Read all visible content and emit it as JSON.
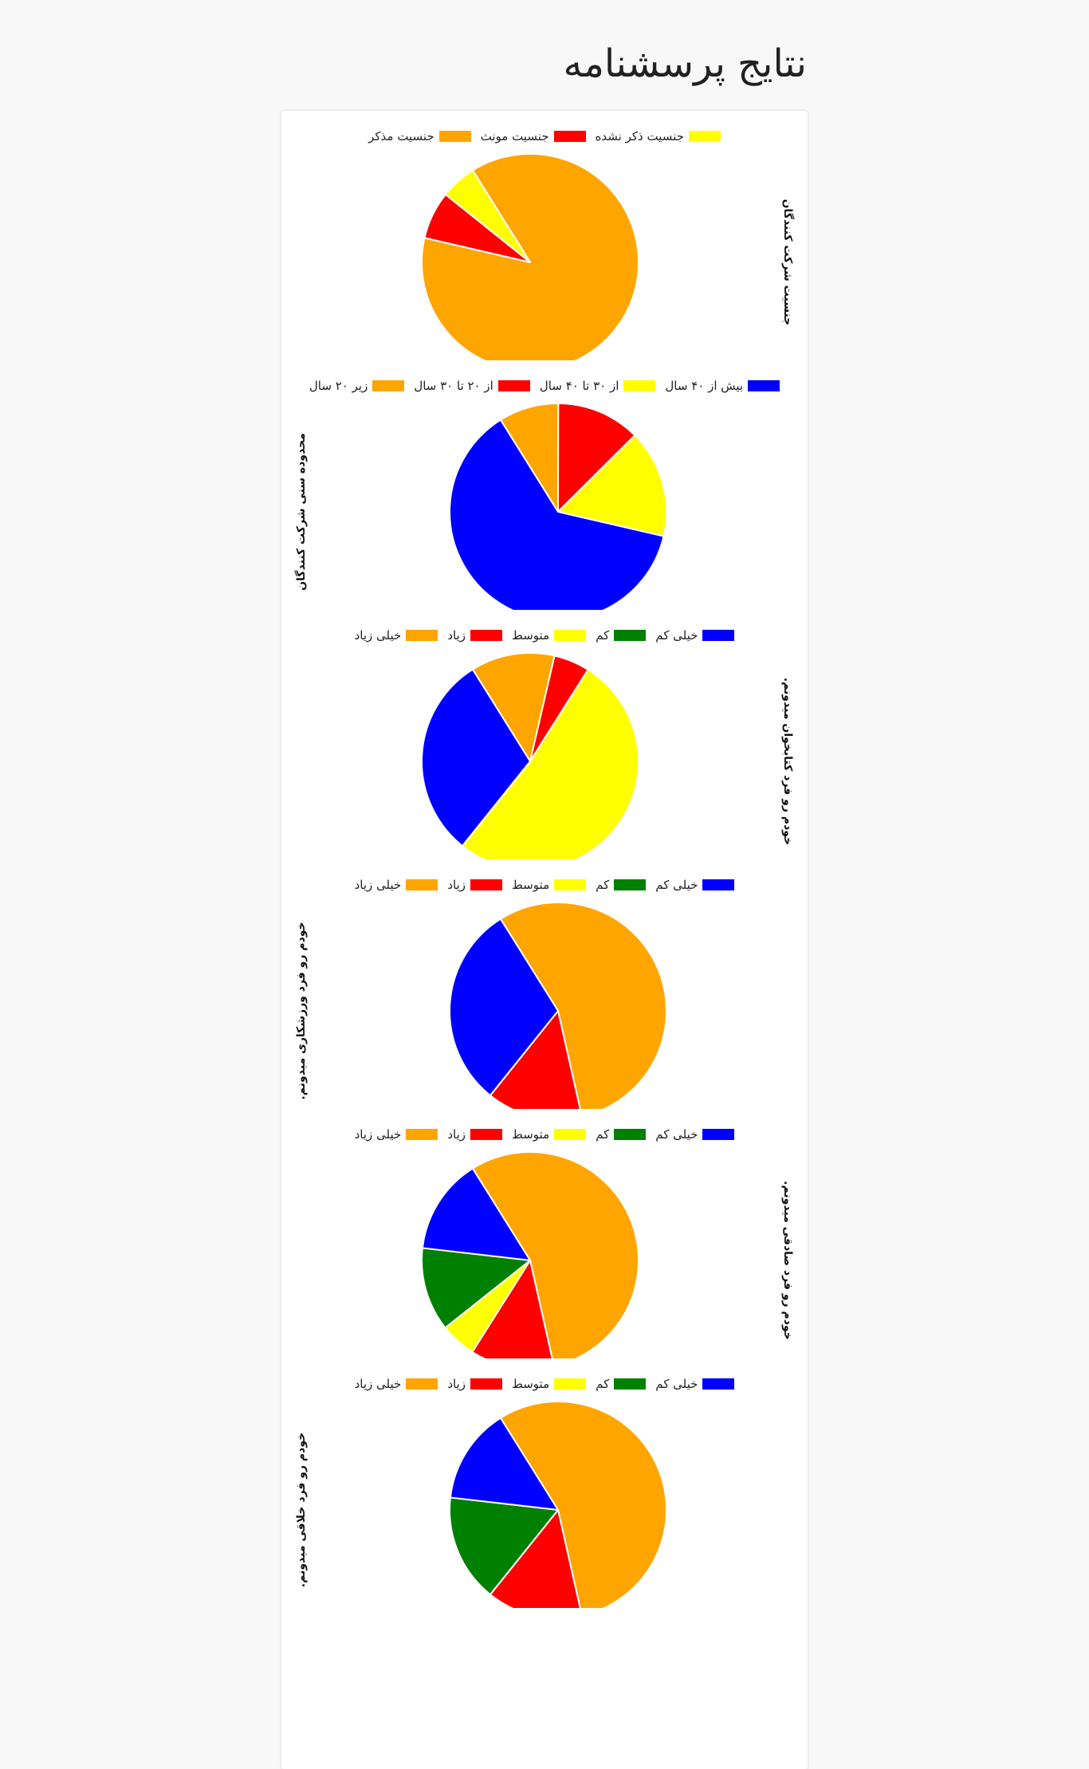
{
  "page": {
    "title": "نتایج پرسشنامه"
  },
  "colors": {
    "orange": "#ffa500",
    "red": "#ff0000",
    "yellow": "#ffff00",
    "green": "#008000",
    "blue": "#0000ff",
    "slice_border": "#ffffff",
    "background": "#f8f8f8",
    "card": "#ffffff"
  },
  "chart_data": [
    {
      "type": "pie",
      "title": "جنسیت شرکت کنندگان",
      "title_position": "right",
      "categories": [
        "جنسیت مذکر",
        "جنسیت مونث",
        "جنسیت ذکر نشده"
      ],
      "values": [
        49,
        4,
        3
      ],
      "colors": [
        "#ffa500",
        "#ff0000",
        "#ffff00"
      ],
      "legend_position": "top"
    },
    {
      "type": "pie",
      "title": "محدوده سنی شرکت کنندگان",
      "title_position": "left",
      "categories": [
        "زیر ۲۰ سال",
        "از ۲۰ تا ۳۰ سال",
        "از ۳۰ تا ۴۰ سال",
        "بیش از ۴۰ سال"
      ],
      "values": [
        5,
        7,
        9,
        35
      ],
      "colors": [
        "#ffa500",
        "#ff0000",
        "#ffff00",
        "#0000ff"
      ],
      "legend_position": "top"
    },
    {
      "type": "pie",
      "title": "خودم رو فرد کتابخوان میدونم.",
      "title_position": "right",
      "categories": [
        "خیلی زیاد",
        "زیاد",
        "متوسط",
        "کم",
        "خیلی کم"
      ],
      "values": [
        7,
        3,
        29,
        0,
        17
      ],
      "colors": [
        "#ffa500",
        "#ff0000",
        "#ffff00",
        "#008000",
        "#0000ff"
      ],
      "legend_position": "top"
    },
    {
      "type": "pie",
      "title": "خودم رو فرد ورزشکاری میدونم.",
      "title_position": "left",
      "categories": [
        "خیلی زیاد",
        "زیاد",
        "متوسط",
        "کم",
        "خیلی کم"
      ],
      "values": [
        31,
        8,
        0,
        0,
        17
      ],
      "colors": [
        "#ffa500",
        "#ff0000",
        "#ffff00",
        "#008000",
        "#0000ff"
      ],
      "legend_position": "top"
    },
    {
      "type": "pie",
      "title": "خودم رو فرد صادقی میدونم.",
      "title_position": "right",
      "categories": [
        "خیلی زیاد",
        "زیاد",
        "متوسط",
        "کم",
        "خیلی کم"
      ],
      "values": [
        31,
        7,
        3,
        7,
        8
      ],
      "colors": [
        "#ffa500",
        "#ff0000",
        "#ffff00",
        "#008000",
        "#0000ff"
      ],
      "legend_position": "top"
    },
    {
      "type": "pie",
      "title": "خودم رو فرد خلاقی میدونم.",
      "title_position": "left",
      "categories": [
        "خیلی زیاد",
        "زیاد",
        "متوسط",
        "کم",
        "خیلی کم"
      ],
      "values": [
        31,
        8,
        0,
        9,
        8
      ],
      "colors": [
        "#ffa500",
        "#ff0000",
        "#ffff00",
        "#008000",
        "#0000ff"
      ],
      "legend_position": "top"
    }
  ]
}
